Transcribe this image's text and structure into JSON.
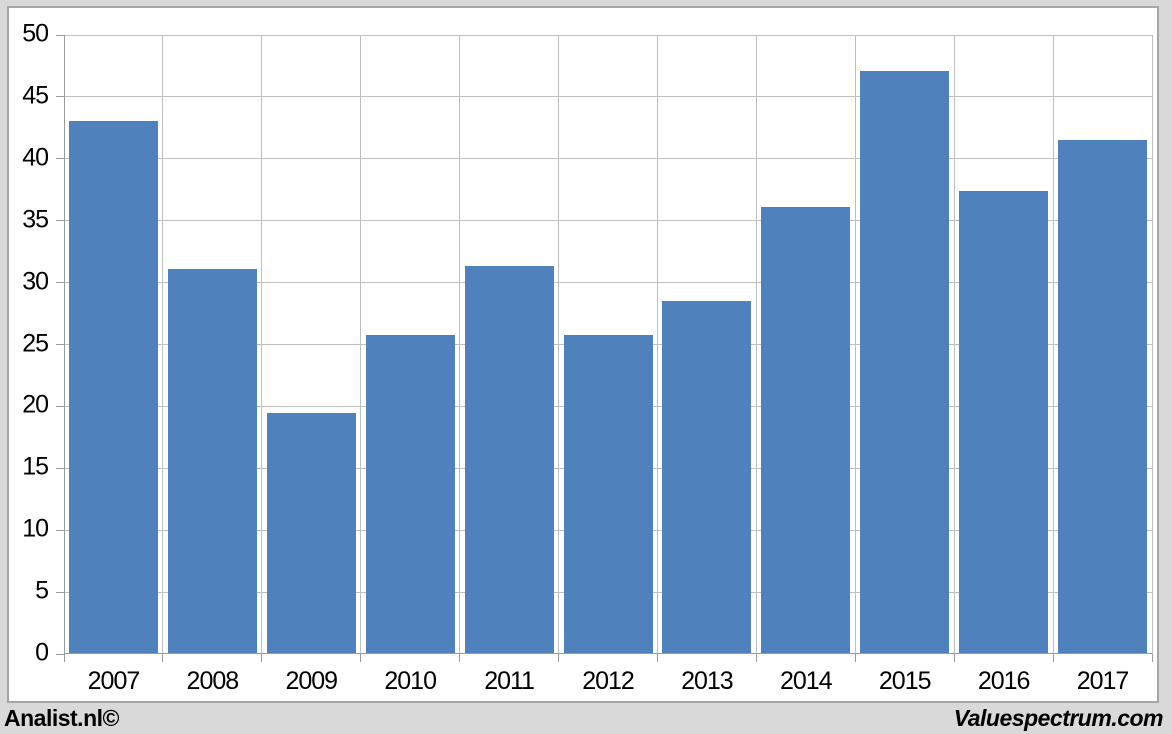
{
  "chart_data": {
    "type": "bar",
    "categories": [
      "2007",
      "2008",
      "2009",
      "2010",
      "2011",
      "2012",
      "2013",
      "2014",
      "2015",
      "2016",
      "2017"
    ],
    "values": [
      43.0,
      31.0,
      19.4,
      25.7,
      31.3,
      25.7,
      28.4,
      36.0,
      47.0,
      37.3,
      41.4
    ],
    "title": "",
    "xlabel": "",
    "ylabel": "",
    "ylim": [
      0,
      50
    ],
    "ytick_step": 5,
    "ytick_labels": [
      "0",
      "5",
      "10",
      "15",
      "20",
      "25",
      "30",
      "35",
      "40",
      "45",
      "50"
    ],
    "grid": true,
    "legend_position": "none",
    "bar_color": "#4f81bd",
    "gridline_color": "#bfbfbf",
    "axis_color": "#9a9a9a"
  },
  "footer": {
    "left_brand": "Analist.nl©",
    "right_brand": "Valuespectrum.com"
  },
  "colors": {
    "page_background": "#d9d9d9",
    "chart_background": "#ffffff",
    "frame_border": "#a6a6a6",
    "text": "#000000"
  }
}
